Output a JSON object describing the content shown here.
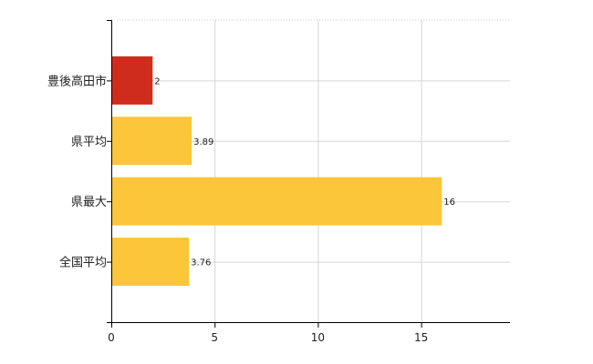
{
  "chart_data": {
    "type": "bar",
    "orientation": "horizontal",
    "categories": [
      "豊後高田市",
      "県平均",
      "県最大",
      "全国平均"
    ],
    "values": [
      2,
      3.89,
      16,
      3.76
    ],
    "value_labels": [
      "2",
      "3.89",
      "16",
      "3.76"
    ],
    "colors": [
      "#d02c1e",
      "#fbc639",
      "#fbc639",
      "#fbc639"
    ],
    "xlim": [
      0,
      19.3
    ],
    "xticks": [
      0,
      5,
      10,
      15
    ],
    "xtick_labels": [
      "0",
      "5",
      "10",
      "15"
    ],
    "grid": true,
    "title": "",
    "xlabel": "",
    "ylabel": ""
  }
}
